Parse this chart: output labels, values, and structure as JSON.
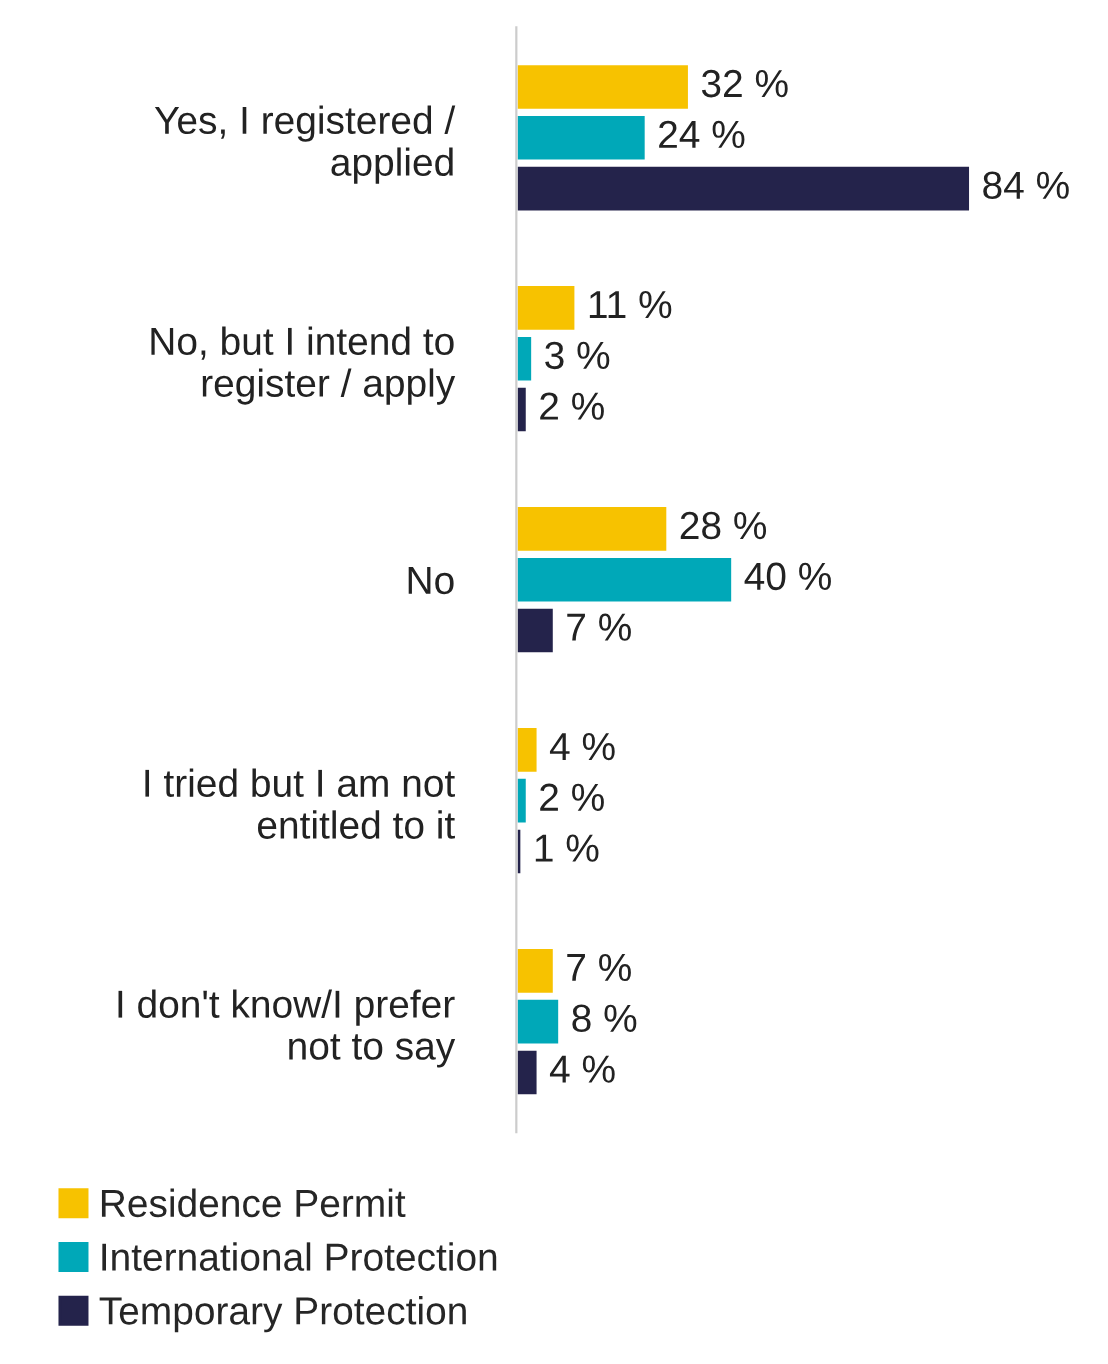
{
  "chart_data": {
    "type": "bar",
    "orientation": "horizontal",
    "categories": [
      "Yes, I registered /\napplied",
      "No, but I intend to\nregister / apply",
      "No",
      "I tried but I am not\nentitled to it",
      "I don't know/I prefer\nnot to say"
    ],
    "series": [
      {
        "name": "Residence Permit",
        "color": "#f7c200",
        "values": [
          32,
          11,
          28,
          4,
          7
        ],
        "value_labels": [
          "32 %",
          "11 %",
          "28 %",
          "4 %",
          "7 %"
        ]
      },
      {
        "name": "International Protection",
        "color": "#00a8b8",
        "values": [
          24,
          3,
          40,
          2,
          8
        ],
        "value_labels": [
          "24 %",
          "3 %",
          "40 %",
          "2 %",
          "8 %"
        ]
      },
      {
        "name": "Temporary Protection",
        "color": "#24234b",
        "values": [
          84,
          2,
          7,
          1,
          4
        ],
        "value_labels": [
          "84 %",
          "2 %",
          "7 %",
          "1 %",
          "4 %"
        ]
      }
    ],
    "grid": false,
    "legend": "bottom"
  }
}
